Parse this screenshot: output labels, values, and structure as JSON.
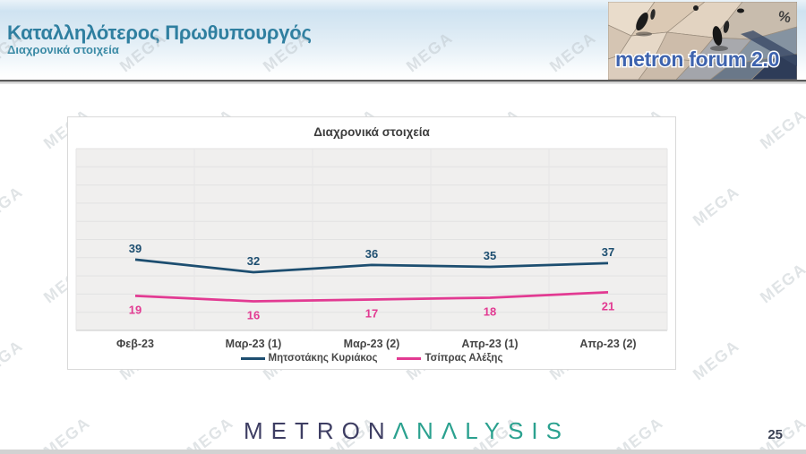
{
  "header": {
    "title": "Καταλληλότερος Πρωθυπουργός",
    "subtitle": "Διαχρονικά στοιχεία"
  },
  "logo": {
    "text": "metron forum 2.0",
    "percent": "%"
  },
  "watermark": {
    "text": "MEGA"
  },
  "chart_data": {
    "type": "line",
    "title": "Διαχρονικά στοιχεία",
    "categories": [
      "Φεβ-23",
      "Μαρ-23 (1)",
      "Μαρ-23 (2)",
      "Απρ-23 (1)",
      "Απρ-23 (2)"
    ],
    "series": [
      {
        "name": "Μητσοτάκης Κυριάκος",
        "color": "#1d4e70",
        "values": [
          39,
          32,
          36,
          35,
          37
        ]
      },
      {
        "name": "Τσίπρας Αλέξης",
        "color": "#e23a92",
        "values": [
          19,
          16,
          17,
          18,
          21
        ]
      }
    ],
    "ylim": [
      0,
      100
    ],
    "grid": true,
    "legend_position": "bottom"
  },
  "footer": {
    "logo_part1": "METRON",
    "logo_part2": "ΛNΛLYSIS",
    "page_number": "25"
  }
}
